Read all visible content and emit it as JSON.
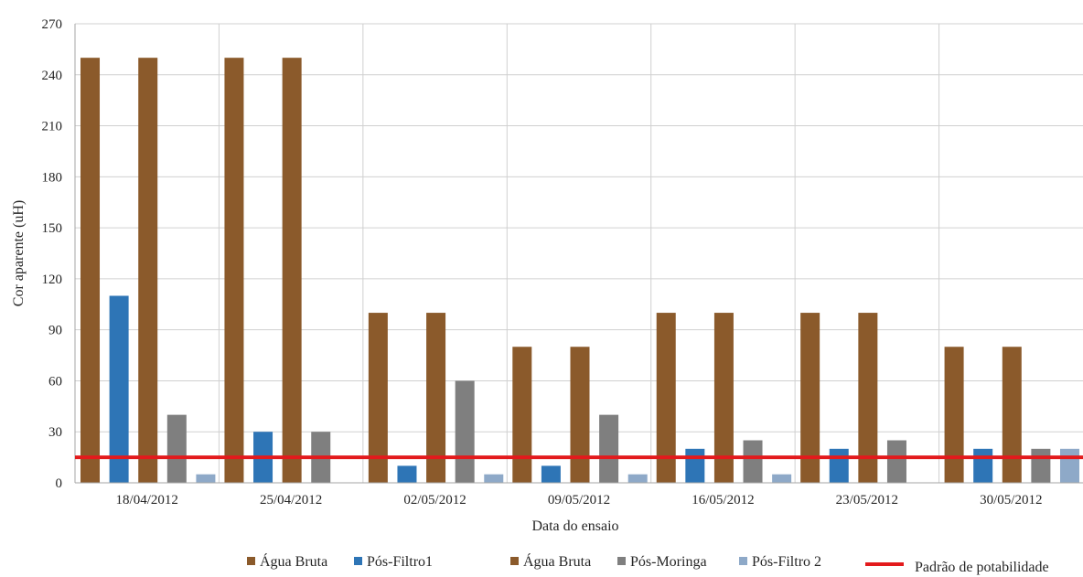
{
  "chart_data": {
    "type": "bar",
    "title": "",
    "xlabel": "Data do ensaio",
    "ylabel": "Cor aparente (uH)",
    "ylim": [
      0,
      270
    ],
    "yticks": [
      0,
      30,
      60,
      90,
      120,
      150,
      180,
      210,
      240,
      270
    ],
    "grid": true,
    "legend_position": "bottom",
    "categories": [
      "18/04/2012",
      "25/04/2012",
      "02/05/2012",
      "09/05/2012",
      "16/05/2012",
      "23/05/2012",
      "30/05/2012"
    ],
    "series": [
      {
        "name": "Água Bruta",
        "color": "#8B5A2B",
        "values": [
          250,
          250,
          100,
          80,
          100,
          100,
          80
        ]
      },
      {
        "name": "Pós-Filtro1",
        "color": "#2E75B6",
        "values": [
          110,
          30,
          10,
          10,
          20,
          20,
          20
        ]
      },
      {
        "name": "Água Bruta",
        "color": "#8B5A2B",
        "values": [
          250,
          250,
          100,
          80,
          100,
          100,
          80
        ]
      },
      {
        "name": "Pós-Moringa",
        "color": "#7F7F7F",
        "values": [
          40,
          30,
          60,
          40,
          25,
          25,
          20
        ]
      },
      {
        "name": "Pós-Filtro 2",
        "color": "#8EA9C8",
        "values": [
          5,
          0,
          5,
          5,
          5,
          0,
          20
        ]
      }
    ],
    "reference_line": {
      "name": "Padrão de potabilidade",
      "value": 15,
      "color": "#E31A1C"
    }
  }
}
